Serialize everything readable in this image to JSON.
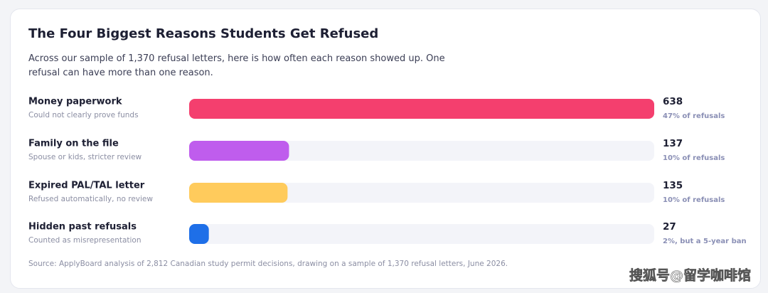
{
  "chart_data": {
    "type": "bar",
    "orientation": "horizontal",
    "title": "The Four Biggest Reasons Students Get Refused",
    "subtitle": "Across our sample of 1,370 refusal letters, here is how often each reason showed up. One refusal can have more than one reason.",
    "categories": [
      "Money paperwork",
      "Family on the file",
      "Expired PAL/TAL letter",
      "Hidden past refusals"
    ],
    "sublabels": [
      "Could not clearly prove funds",
      "Spouse or kids, stricter review",
      "Refused automatically, no review",
      "Counted as misrepresentation"
    ],
    "values": [
      638,
      137,
      135,
      27
    ],
    "details": [
      "47% of refusals",
      "10% of refusals",
      "10% of refusals",
      "2%, but a 5-year ban"
    ],
    "colors": [
      "#f43f6e",
      "#bf5ded",
      "#ffcb5c",
      "#1e6fe8"
    ],
    "track_color": "#f3f4f9",
    "xlim": [
      0,
      638
    ],
    "source": "Source: ApplyBoard analysis of 2,812 Canadian study permit decisions, drawing on a sample of 1,370 refusal letters, June 2026.",
    "watermark": "搜狐号@留学咖啡馆"
  }
}
